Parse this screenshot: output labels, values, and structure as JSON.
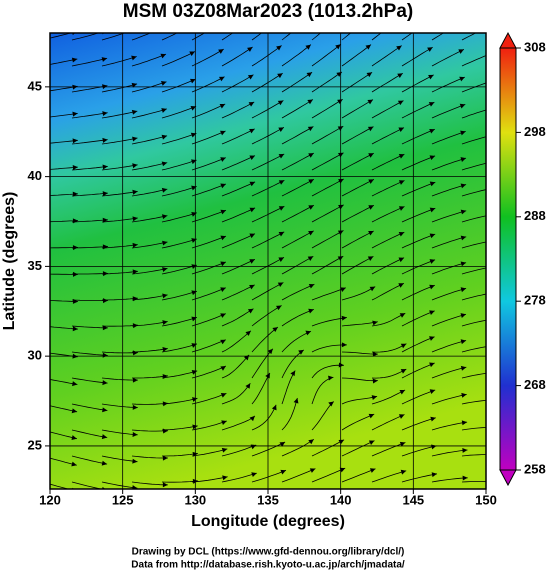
{
  "chart_data": {
    "type": "map",
    "title": "MSM 03Z08Mar2023 (1013.2hPa)",
    "x_label": "Longitude (degrees)",
    "y_label": "Latitude  (degrees)",
    "xlim": [
      120,
      150
    ],
    "xticks": [
      120,
      125,
      130,
      135,
      140,
      145,
      150
    ],
    "ylim": [
      22.6,
      48
    ],
    "yticks": [
      25,
      30,
      35,
      40,
      45
    ],
    "grid": true,
    "colorbar": {
      "lim": [
        258,
        308
      ],
      "ticks": [
        258,
        268,
        278,
        288,
        298,
        308
      ]
    },
    "credits": [
      "Drawing by DCL (https://www.gfd-dennou.org/library/dcl/)",
      "Data from http://database.rish.kyoto-u.ac.jp/arch/jmadata/"
    ]
  }
}
